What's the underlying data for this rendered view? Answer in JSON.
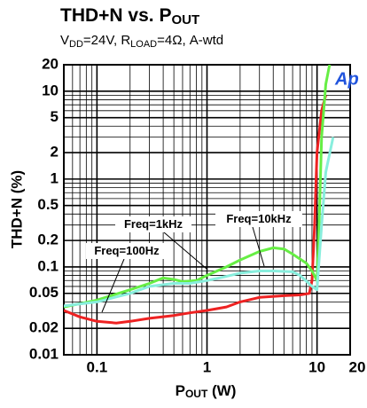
{
  "chart_data": {
    "type": "line",
    "title_parts": [
      "THD+N vs. P",
      "OUT"
    ],
    "subtitle_parts": [
      "V",
      "DD",
      "=24V, R",
      "LOAD",
      "=4Ω, A-wtd"
    ],
    "xlabel_parts": [
      "P",
      "OUT",
      " (W)"
    ],
    "ylabel": "THD+N (%)",
    "logo": "Ap",
    "annotations": [
      "Freq=100Hz",
      "Freq=1kHz",
      "Freq=10kHz"
    ],
    "xlog": true,
    "ylog": true,
    "grid": true,
    "minor_grid": true,
    "xlim": [
      0.05,
      20
    ],
    "xticks": [
      0.1,
      1,
      10,
      20
    ],
    "ylim": [
      0.01,
      20
    ],
    "yticks": [
      20,
      10,
      5,
      2,
      1,
      0.5,
      0.2,
      0.1,
      0.05,
      0.02,
      0.01
    ],
    "series": [
      {
        "name": "Freq=100Hz",
        "color": "#ee2222",
        "x": [
          0.05,
          0.07,
          0.1,
          0.15,
          0.2,
          0.3,
          0.5,
          0.7,
          1,
          1.5,
          2,
          3,
          5,
          7,
          8.5,
          9,
          9.5,
          10,
          11,
          12
        ],
        "values": [
          0.032,
          0.027,
          0.024,
          0.023,
          0.024,
          0.026,
          0.028,
          0.03,
          0.032,
          0.035,
          0.04,
          0.045,
          0.047,
          0.048,
          0.05,
          0.07,
          0.3,
          2,
          6,
          9
        ]
      },
      {
        "name": "Freq=1kHz",
        "color": "#66ee44",
        "x": [
          0.05,
          0.1,
          0.2,
          0.3,
          0.4,
          0.5,
          0.6,
          0.8,
          1,
          1.5,
          2,
          3,
          4,
          5,
          6,
          8,
          9,
          10,
          10.5,
          11,
          12,
          13
        ],
        "values": [
          0.035,
          0.042,
          0.055,
          0.065,
          0.075,
          0.072,
          0.068,
          0.07,
          0.08,
          0.1,
          0.12,
          0.15,
          0.165,
          0.16,
          0.14,
          0.11,
          0.09,
          0.07,
          0.4,
          3,
          12,
          20
        ]
      },
      {
        "name": "Freq=10kHz",
        "color": "#88eedd",
        "x": [
          0.05,
          0.1,
          0.2,
          0.3,
          0.5,
          0.7,
          1,
          1.5,
          2,
          3,
          4,
          6,
          7,
          9,
          10,
          11,
          12,
          14
        ],
        "values": [
          0.036,
          0.04,
          0.05,
          0.06,
          0.065,
          0.065,
          0.07,
          0.078,
          0.085,
          0.09,
          0.09,
          0.088,
          0.08,
          0.06,
          0.055,
          0.3,
          1.2,
          3
        ]
      }
    ]
  }
}
